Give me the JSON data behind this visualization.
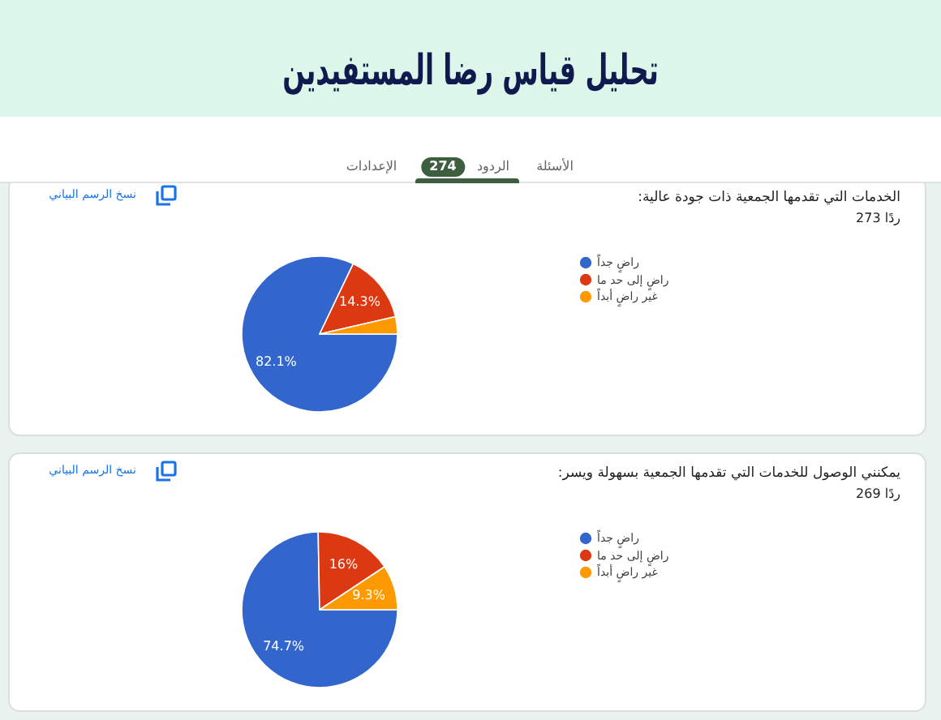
{
  "chart_data": [
    {
      "type": "other",
      "title": "تحليل قياس رضا المستفيدين",
      "annotations": [
        "الأسئلة",
        "الردود",
        "274",
        "الإعدادات"
      ]
    },
    {
      "type": "pie",
      "title": "الخدمات التي تقدمها الجمعية ذات جودة عالية:",
      "annotations": [
        "نسخ الرسم البياني",
        "273 ردًا"
      ],
      "categories": [
        "راضٍ جداً",
        "راضٍ إلى حد ما",
        "غير راضٍ أبداً"
      ],
      "values": [
        82.1,
        14.3,
        3.6
      ],
      "colors": [
        "#3366cc",
        "#dc3912",
        "#ff9900"
      ],
      "value_labels": [
        "82.1%",
        "14.3%",
        null
      ],
      "legend": "right"
    },
    {
      "type": "pie",
      "title": "يمكنني الوصول للخدمات التي تقدمها الجمعية بسهولة ويسر:",
      "annotations": [
        "نسخ الرسم البياني",
        "269 ردًا"
      ],
      "categories": [
        "راضٍ جداً",
        "راضٍ إلى حد ما",
        "غير راضٍ أبداً"
      ],
      "values": [
        74.7,
        16,
        9.3
      ],
      "colors": [
        "#3366cc",
        "#dc3912",
        "#ff9900"
      ],
      "value_labels": [
        "74.7%",
        "16%",
        "9.3%"
      ],
      "legend": "right"
    }
  ]
}
